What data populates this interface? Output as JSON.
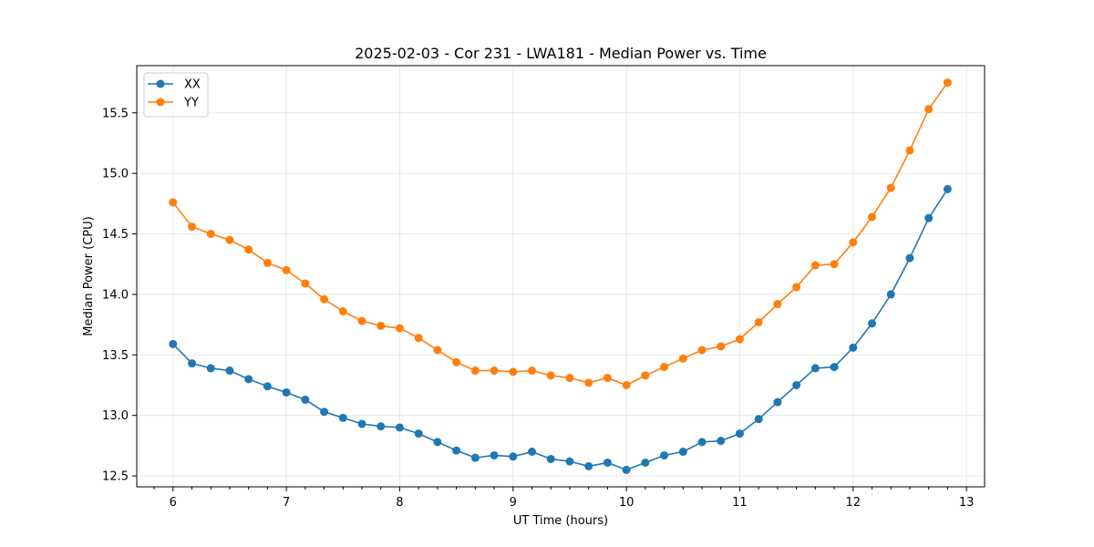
{
  "chart_data": {
    "type": "line",
    "title": "2025-02-03 - Cor 231 - LWA181 - Median Power vs. Time",
    "xlabel": "UT Time (hours)",
    "ylabel": "Median Power (CPU)",
    "xlim": [
      5.68,
      13.16
    ],
    "ylim": [
      12.41,
      15.89
    ],
    "xticks": [
      6,
      7,
      8,
      9,
      10,
      11,
      12,
      13
    ],
    "xtick_labels": [
      "6",
      "7",
      "8",
      "9",
      "10",
      "11",
      "12",
      "13"
    ],
    "yticks": [
      12.5,
      13.0,
      13.5,
      14.0,
      14.5,
      15.0,
      15.5
    ],
    "ytick_labels": [
      "12.5",
      "13.0",
      "13.5",
      "14.0",
      "14.5",
      "15.0",
      "15.5"
    ],
    "grid": true,
    "legend_position": "top-left",
    "x": [
      6.0,
      6.1667,
      6.3333,
      6.5,
      6.6667,
      6.8333,
      7.0,
      7.1667,
      7.3333,
      7.5,
      7.6667,
      7.8333,
      8.0,
      8.1667,
      8.3333,
      8.5,
      8.6667,
      8.8333,
      9.0,
      9.1667,
      9.3333,
      9.5,
      9.6667,
      9.8333,
      10.0,
      10.1667,
      10.3333,
      10.5,
      10.6667,
      10.8333,
      11.0,
      11.1667,
      11.3333,
      11.5,
      11.6667,
      11.8333,
      12.0,
      12.1667,
      12.3333,
      12.5,
      12.6667,
      12.8333
    ],
    "series": [
      {
        "name": "XX",
        "color": "#1f77b4",
        "values": [
          13.59,
          13.43,
          13.39,
          13.37,
          13.3,
          13.24,
          13.19,
          13.13,
          13.03,
          12.98,
          12.93,
          12.91,
          12.9,
          12.85,
          12.78,
          12.71,
          12.65,
          12.67,
          12.66,
          12.7,
          12.64,
          12.62,
          12.58,
          12.61,
          12.55,
          12.61,
          12.67,
          12.7,
          12.78,
          12.79,
          12.85,
          12.97,
          13.11,
          13.25,
          13.39,
          13.4,
          13.56,
          13.76,
          14.0,
          14.3,
          14.63,
          14.87
        ]
      },
      {
        "name": "YY",
        "color": "#ff7f0e",
        "values": [
          14.76,
          14.56,
          14.5,
          14.45,
          14.37,
          14.26,
          14.2,
          14.09,
          13.96,
          13.86,
          13.78,
          13.74,
          13.72,
          13.64,
          13.54,
          13.44,
          13.37,
          13.37,
          13.36,
          13.37,
          13.33,
          13.31,
          13.27,
          13.31,
          13.25,
          13.33,
          13.4,
          13.47,
          13.54,
          13.57,
          13.63,
          13.77,
          13.92,
          14.06,
          14.24,
          14.25,
          14.43,
          14.64,
          14.88,
          15.19,
          15.53,
          15.75
        ]
      }
    ]
  }
}
